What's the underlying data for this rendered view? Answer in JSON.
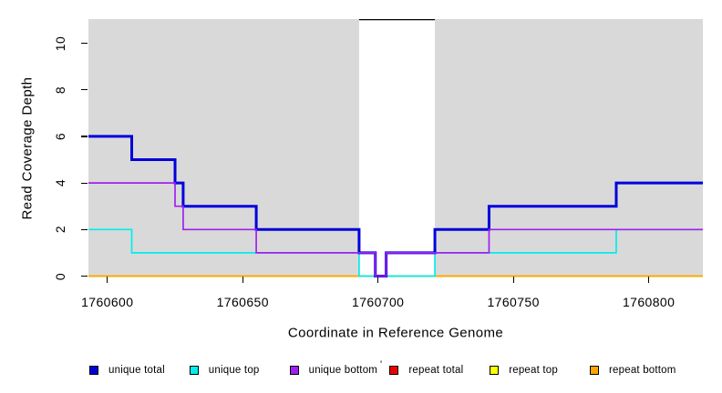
{
  "chart_data": {
    "type": "line",
    "subtype": "step-coverage",
    "title": "",
    "xlabel": "Coordinate in Reference Genome",
    "ylabel": "Read Coverage Depth",
    "xlim": [
      1760593,
      1760820
    ],
    "ylim": [
      0,
      11
    ],
    "x_ticks": [
      1760600,
      1760650,
      1760700,
      1760750,
      1760800
    ],
    "y_ticks": [
      0,
      2,
      4,
      6,
      8,
      10
    ],
    "grid": "off",
    "panel_bg": "#D9D9D9",
    "gap_region": {
      "start": 1760693,
      "end": 1760721,
      "top_value": 11,
      "fill": "#FFFFFF",
      "top_border": "#000000"
    },
    "series": [
      {
        "name": "unique total",
        "color": "#0000DD",
        "points": [
          [
            1760593,
            6
          ],
          [
            1760609,
            5
          ],
          [
            1760625,
            4
          ],
          [
            1760628,
            3
          ],
          [
            1760655,
            2
          ],
          [
            1760693,
            1
          ],
          [
            1760699,
            0
          ],
          [
            1760703,
            1
          ],
          [
            1760721,
            2
          ],
          [
            1760741,
            3
          ],
          [
            1760788,
            4
          ]
        ]
      },
      {
        "name": "unique top",
        "color": "#00EEEE",
        "points": [
          [
            1760593,
            2
          ],
          [
            1760609,
            1
          ],
          [
            1760693,
            0
          ],
          [
            1760721,
            1
          ],
          [
            1760788,
            2
          ]
        ]
      },
      {
        "name": "unique bottom",
        "color": "#A020F0",
        "points": [
          [
            1760593,
            4
          ],
          [
            1760625,
            3
          ],
          [
            1760628,
            2
          ],
          [
            1760655,
            1
          ],
          [
            1760699,
            0
          ],
          [
            1760703,
            1
          ],
          [
            1760741,
            2
          ]
        ]
      },
      {
        "name": "repeat total",
        "color": "#EE0000",
        "points": [
          [
            1760593,
            0
          ]
        ]
      },
      {
        "name": "repeat top",
        "color": "#FFFF00",
        "points": [
          [
            1760593,
            0
          ]
        ]
      },
      {
        "name": "repeat bottom",
        "color": "#FFA500",
        "points": [
          [
            1760593,
            0
          ]
        ]
      }
    ],
    "legend": {
      "position": "bottom",
      "entries": [
        {
          "label": "unique total",
          "color": "#0000DD"
        },
        {
          "label": "unique top",
          "color": "#00EEEE"
        },
        {
          "label": "unique bottom",
          "color": "#A020F0"
        },
        {
          "label": "repeat total",
          "color": "#EE0000"
        },
        {
          "label": "repeat top",
          "color": "#FFFF00"
        },
        {
          "label": "repeat bottom",
          "color": "#FFA500"
        }
      ]
    }
  },
  "stray_mark": "'"
}
